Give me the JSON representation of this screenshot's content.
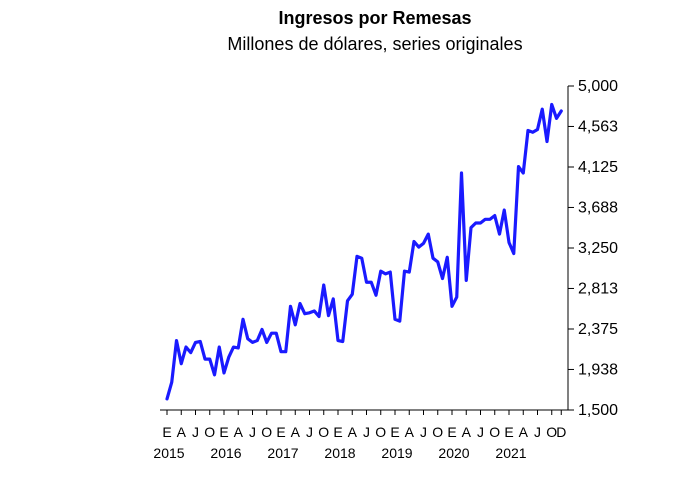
{
  "chart_data": {
    "type": "line",
    "title": "Ingresos por Remesas",
    "subtitle": "Millones de dólares, series originales",
    "xlabel": "",
    "ylabel": "",
    "ylim": [
      1500,
      5000
    ],
    "yticks": [
      "1,500",
      "1,938",
      "2,375",
      "2,813",
      "3,250",
      "3,688",
      "4,125",
      "4,563",
      "5,000"
    ],
    "ytick_values": [
      1500,
      1938,
      2375,
      2813,
      3250,
      3688,
      4125,
      4563,
      5000
    ],
    "x_month_labels": [
      "E",
      "A",
      "J",
      "O",
      "E",
      "A",
      "J",
      "O",
      "E",
      "A",
      "J",
      "O",
      "E",
      "A",
      "J",
      "O",
      "E",
      "A",
      "J",
      "O",
      "E",
      "A",
      "J",
      "O",
      "E",
      "A",
      "J",
      "O",
      "D"
    ],
    "x_year_labels": [
      "2015",
      "2016",
      "2017",
      "2018",
      "2019",
      "2020",
      "2021"
    ],
    "grid": false,
    "legend": "none",
    "line_color": "#1a1aff",
    "x": [
      "2015-01",
      "2015-02",
      "2015-03",
      "2015-04",
      "2015-05",
      "2015-06",
      "2015-07",
      "2015-08",
      "2015-09",
      "2015-10",
      "2015-11",
      "2015-12",
      "2016-01",
      "2016-02",
      "2016-03",
      "2016-04",
      "2016-05",
      "2016-06",
      "2016-07",
      "2016-08",
      "2016-09",
      "2016-10",
      "2016-11",
      "2016-12",
      "2017-01",
      "2017-02",
      "2017-03",
      "2017-04",
      "2017-05",
      "2017-06",
      "2017-07",
      "2017-08",
      "2017-09",
      "2017-10",
      "2017-11",
      "2017-12",
      "2018-01",
      "2018-02",
      "2018-03",
      "2018-04",
      "2018-05",
      "2018-06",
      "2018-07",
      "2018-08",
      "2018-09",
      "2018-10",
      "2018-11",
      "2018-12",
      "2019-01",
      "2019-02",
      "2019-03",
      "2019-04",
      "2019-05",
      "2019-06",
      "2019-07",
      "2019-08",
      "2019-09",
      "2019-10",
      "2019-11",
      "2019-12",
      "2020-01",
      "2020-02",
      "2020-03",
      "2020-04",
      "2020-05",
      "2020-06",
      "2020-07",
      "2020-08",
      "2020-09",
      "2020-10",
      "2020-11",
      "2020-12",
      "2021-01",
      "2021-02",
      "2021-03",
      "2021-04",
      "2021-05",
      "2021-06",
      "2021-07",
      "2021-08",
      "2021-09",
      "2021-10",
      "2021-11",
      "2021-12"
    ],
    "series": [
      {
        "values": [
          1620,
          1800,
          2250,
          2000,
          2180,
          2120,
          2230,
          2240,
          2050,
          2050,
          1880,
          2180,
          1900,
          2070,
          2180,
          2170,
          2480,
          2270,
          2230,
          2250,
          2370,
          2230,
          2330,
          2330,
          2130,
          2130,
          2620,
          2420,
          2650,
          2540,
          2550,
          2570,
          2510,
          2850,
          2520,
          2700,
          2250,
          2240,
          2680,
          2750,
          3160,
          3140,
          2880,
          2880,
          2740,
          3000,
          2970,
          2990,
          2480,
          2460,
          3000,
          2990,
          3320,
          3260,
          3300,
          3400,
          3140,
          3100,
          2920,
          3150,
          2620,
          2720,
          4060,
          2900,
          3470,
          3520,
          3520,
          3560,
          3560,
          3600,
          3400,
          3660,
          3310,
          3190,
          4130,
          4060,
          4520,
          4500,
          4530,
          4750,
          4400,
          4800,
          4650,
          4730
        ]
      }
    ]
  }
}
